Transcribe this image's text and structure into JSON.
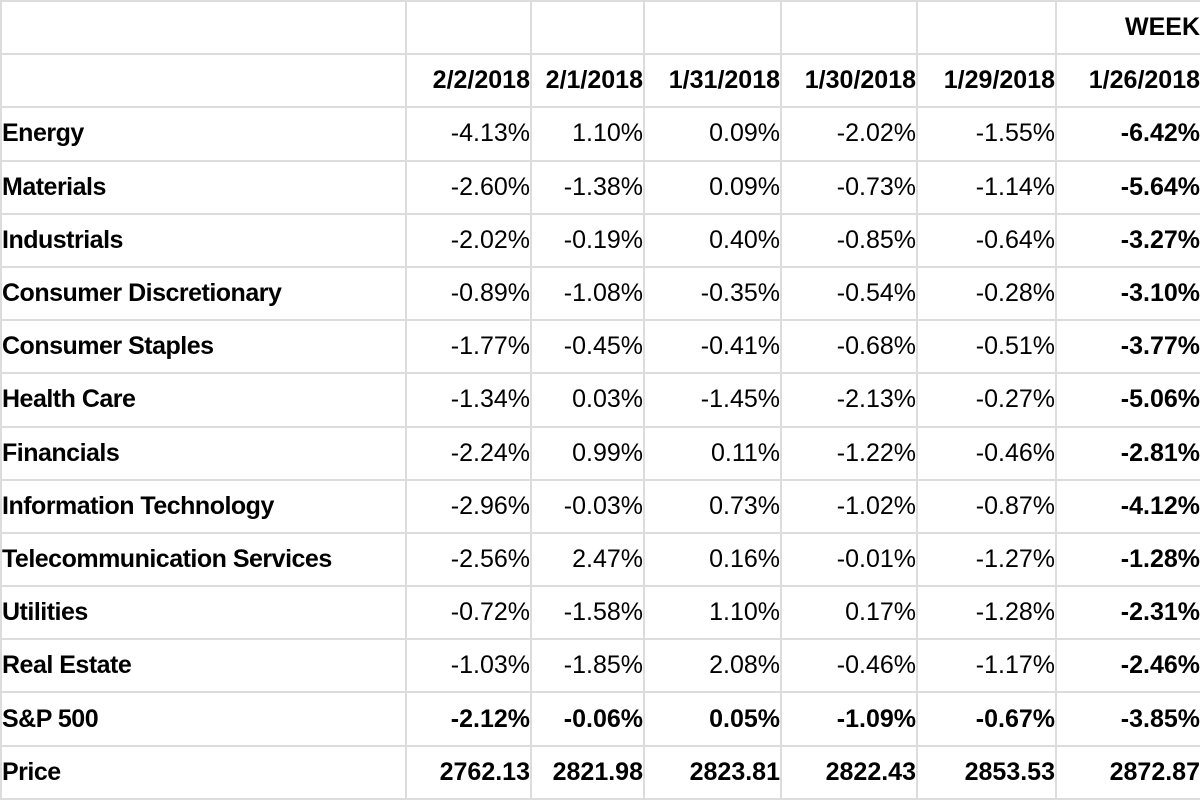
{
  "chart_data": {
    "type": "table",
    "week_label": "WEEK",
    "columns": [
      "2/2/2018",
      "2/1/2018",
      "1/31/2018",
      "1/30/2018",
      "1/29/2018",
      "1/26/2018"
    ],
    "rows": [
      {
        "label": "Energy",
        "bold": false,
        "values": [
          "-4.13%",
          "1.10%",
          "0.09%",
          "-2.02%",
          "-1.55%",
          "-6.42%"
        ]
      },
      {
        "label": "Materials",
        "bold": false,
        "values": [
          "-2.60%",
          "-1.38%",
          "0.09%",
          "-0.73%",
          "-1.14%",
          "-5.64%"
        ]
      },
      {
        "label": "Industrials",
        "bold": false,
        "values": [
          "-2.02%",
          "-0.19%",
          "0.40%",
          "-0.85%",
          "-0.64%",
          "-3.27%"
        ]
      },
      {
        "label": "Consumer Discretionary",
        "bold": false,
        "values": [
          "-0.89%",
          "-1.08%",
          "-0.35%",
          "-0.54%",
          "-0.28%",
          "-3.10%"
        ]
      },
      {
        "label": "Consumer Staples",
        "bold": false,
        "values": [
          "-1.77%",
          "-0.45%",
          "-0.41%",
          "-0.68%",
          "-0.51%",
          "-3.77%"
        ]
      },
      {
        "label": "Health Care",
        "bold": false,
        "values": [
          "-1.34%",
          "0.03%",
          "-1.45%",
          "-2.13%",
          "-0.27%",
          "-5.06%"
        ]
      },
      {
        "label": "Financials",
        "bold": false,
        "values": [
          "-2.24%",
          "0.99%",
          "0.11%",
          "-1.22%",
          "-0.46%",
          "-2.81%"
        ]
      },
      {
        "label": "Information Technology",
        "bold": false,
        "values": [
          "-2.96%",
          "-0.03%",
          "0.73%",
          "-1.02%",
          "-0.87%",
          "-4.12%"
        ]
      },
      {
        "label": "Telecommunication Services",
        "bold": false,
        "values": [
          "-2.56%",
          "2.47%",
          "0.16%",
          "-0.01%",
          "-1.27%",
          "-1.28%"
        ]
      },
      {
        "label": "Utilities",
        "bold": false,
        "values": [
          "-0.72%",
          "-1.58%",
          "1.10%",
          "0.17%",
          "-1.28%",
          "-2.31%"
        ]
      },
      {
        "label": "Real Estate",
        "bold": false,
        "values": [
          "-1.03%",
          "-1.85%",
          "2.08%",
          "-0.46%",
          "-1.17%",
          "-2.46%"
        ]
      },
      {
        "label": "S&P 500",
        "bold": true,
        "values": [
          "-2.12%",
          "-0.06%",
          "0.05%",
          "-1.09%",
          "-0.67%",
          "-3.85%"
        ]
      },
      {
        "label": "Price",
        "bold": true,
        "values": [
          "2762.13",
          "2821.98",
          "2823.81",
          "2822.43",
          "2853.53",
          "2872.87"
        ]
      }
    ],
    "layout": {
      "week_column_index": 5,
      "week_column_bold": true,
      "grid": "on"
    },
    "colors": {
      "background": "#ffffff",
      "grid_line": "#dcdcdc",
      "text": "#000000"
    }
  }
}
